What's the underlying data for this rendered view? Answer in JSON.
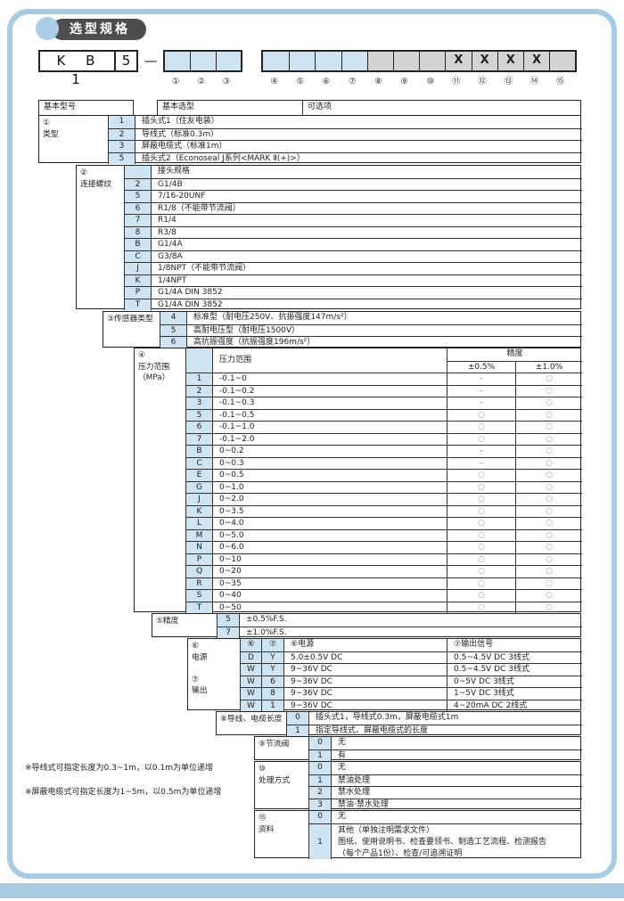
{
  "page": {
    "title": "选型规格"
  },
  "colors": {
    "frame": "#a6cbe3",
    "cell_blue": "#cfe4f2",
    "cell_gray": "#d4d4d4",
    "badge_dark": "#4d4d4d"
  },
  "model_code": {
    "prefix_cells": [
      "K B 1",
      "5"
    ],
    "separator": "—",
    "group1": {
      "cells": [
        {
          "label": "①",
          "text": ""
        },
        {
          "label": "②",
          "text": ""
        },
        {
          "label": "③",
          "text": ""
        }
      ]
    },
    "group2": {
      "cells": [
        {
          "label": "④",
          "text": "",
          "fill": "blue"
        },
        {
          "label": "⑤",
          "text": "",
          "fill": "blue"
        },
        {
          "label": "⑥",
          "text": "",
          "fill": "blue"
        },
        {
          "label": "⑦",
          "text": "",
          "fill": "blue"
        },
        {
          "label": "⑧",
          "text": "",
          "fill": "gray"
        },
        {
          "label": "⑨",
          "text": "",
          "fill": "gray"
        },
        {
          "label": "⑩",
          "text": "",
          "fill": "gray"
        },
        {
          "label": "⑪",
          "text": "X",
          "fill": "gray"
        },
        {
          "label": "⑫",
          "text": "X",
          "fill": "gray"
        },
        {
          "label": "⑬",
          "text": "X",
          "fill": "gray"
        },
        {
          "label": "⑭",
          "text": "X",
          "fill": "gray"
        },
        {
          "label": "⑮",
          "text": "",
          "fill": "gray"
        }
      ]
    }
  },
  "table": {
    "header": {
      "col1": "基本型号",
      "col2": "基本选型",
      "col3": "可选项"
    },
    "sections": [
      {
        "id": "type",
        "label": "①\n类型",
        "rows": [
          {
            "code": "1",
            "desc": "插头式1（住友电装）"
          },
          {
            "code": "2",
            "desc": "导线式（标准0.3m）"
          },
          {
            "code": "3",
            "desc": "屏蔽电缆式（标准1m）"
          },
          {
            "code": "5",
            "desc": "插头式2（Econoseal J系列<MARK Ⅱ(+)>）"
          }
        ]
      },
      {
        "id": "thread",
        "label": "②\n连接螺纹",
        "rows": [
          {
            "code": "",
            "desc": "接头规格"
          },
          {
            "code": "2",
            "desc": "G1/4B"
          },
          {
            "code": "5",
            "desc": "7/16-20UNF"
          },
          {
            "code": "6",
            "desc": "R1/8（不能带节流阀）"
          },
          {
            "code": "7",
            "desc": "R1/4"
          },
          {
            "code": "8",
            "desc": "R3/8"
          },
          {
            "code": "B",
            "desc": "G1/4A"
          },
          {
            "code": "C",
            "desc": "G3/8A"
          },
          {
            "code": "J",
            "desc": "1/8NPT（不能带节流阀）"
          },
          {
            "code": "K",
            "desc": "1/4NPT"
          },
          {
            "code": "P",
            "desc": "G1/4A DIN 3852"
          },
          {
            "code": "T",
            "desc": "G1/4A DIN 3852"
          }
        ]
      },
      {
        "id": "sensor-type",
        "label": "③传感器类型",
        "rows": [
          {
            "code": "4",
            "desc": "标准型（耐电压250V、抗振强度147m/s²）"
          },
          {
            "code": "5",
            "desc": "高耐电压型（耐电压1500V）"
          },
          {
            "code": "6",
            "desc": "高抗振强度（抗振强度196m/s²）"
          }
        ]
      },
      {
        "id": "pressure-range",
        "label": "④\n压力范围\n（MPa）",
        "header": {
          "range_label": "压力范围",
          "accuracy_label": "精度",
          "col05": "±0.5%",
          "col10": "±1.0%"
        },
        "rows": [
          {
            "code": "1",
            "desc": "-0.1~0",
            "a05": "–",
            "a10": "○"
          },
          {
            "code": "2",
            "desc": "-0.1~0.2",
            "a05": "–",
            "a10": "○"
          },
          {
            "code": "3",
            "desc": "-0.1~0.3",
            "a05": "–",
            "a10": "○"
          },
          {
            "code": "5",
            "desc": "-0.1~0.5",
            "a05": "○",
            "a10": "○"
          },
          {
            "code": "6",
            "desc": "-0.1~1.0",
            "a05": "○",
            "a10": "○"
          },
          {
            "code": "7",
            "desc": "-0.1~2.0",
            "a05": "○",
            "a10": "○"
          },
          {
            "code": "B",
            "desc": "0~0.2",
            "a05": "–",
            "a10": "○"
          },
          {
            "code": "C",
            "desc": "0~0.3",
            "a05": "–",
            "a10": "○"
          },
          {
            "code": "E",
            "desc": "0~0.5",
            "a05": "○",
            "a10": "○"
          },
          {
            "code": "G",
            "desc": "0~1.0",
            "a05": "○",
            "a10": "○"
          },
          {
            "code": "J",
            "desc": "0~2.0",
            "a05": "○",
            "a10": "○"
          },
          {
            "code": "K",
            "desc": "0~3.5",
            "a05": "○",
            "a10": "○"
          },
          {
            "code": "L",
            "desc": "0~4.0",
            "a05": "○",
            "a10": "○"
          },
          {
            "code": "M",
            "desc": "0~5.0",
            "a05": "○",
            "a10": "○"
          },
          {
            "code": "N",
            "desc": "0~6.0",
            "a05": "○",
            "a10": "○"
          },
          {
            "code": "P",
            "desc": "0~10",
            "a05": "○",
            "a10": "○"
          },
          {
            "code": "Q",
            "desc": "0~20",
            "a05": "○",
            "a10": "○"
          },
          {
            "code": "R",
            "desc": "0~35",
            "a05": "○",
            "a10": "○"
          },
          {
            "code": "S",
            "desc": "0~40",
            "a05": "○",
            "a10": "○"
          },
          {
            "code": "T",
            "desc": "0~50",
            "a05": "○",
            "a10": "○"
          }
        ]
      },
      {
        "id": "accuracy",
        "label": "⑤精度",
        "rows": [
          {
            "code": "5",
            "desc": "±0.5%F.S."
          },
          {
            "code": "7",
            "desc": "±1.0%F.S."
          }
        ]
      },
      {
        "id": "power-output",
        "label": "⑥\n电源\n\n⑦\n输出",
        "rows": [
          {
            "code": "⑥",
            "code2": "⑦",
            "desc": "⑥电源",
            "desc2": "⑦输出信号"
          },
          {
            "code": "D",
            "code2": "Y",
            "desc": "5.0±0.5V DC",
            "desc2": "0.5~4.5V DC 3线式"
          },
          {
            "code": "W",
            "code2": "Y",
            "desc": "9~36V DC",
            "desc2": "0.5~4.5V DC 3线式"
          },
          {
            "code": "W",
            "code2": "6",
            "desc": "9~36V DC",
            "desc2": "0~5V DC 3线式"
          },
          {
            "code": "W",
            "code2": "8",
            "desc": "9~36V DC",
            "desc2": "1~5V DC 3线式"
          },
          {
            "code": "W",
            "code2": "1",
            "desc": "9~36V DC",
            "desc2": "4~20mA DC 2线式"
          }
        ]
      },
      {
        "id": "cable-length",
        "label": "⑧导线、电缆长度",
        "rows": [
          {
            "code": "0",
            "desc": "插头式1，导线式0.3m，屏蔽电缆式1m"
          },
          {
            "code": "1",
            "desc": "指定导线式、屏蔽电缆式的长度"
          }
        ]
      },
      {
        "id": "throttle-valve",
        "label": "⑨节流阀",
        "rows": [
          {
            "code": "0",
            "desc": "无"
          },
          {
            "code": "1",
            "desc": "有"
          }
        ]
      },
      {
        "id": "treatment",
        "label": "⑩\n处理方式",
        "rows": [
          {
            "code": "0",
            "desc": "无"
          },
          {
            "code": "1",
            "desc": "禁油处理"
          },
          {
            "code": "2",
            "desc": "禁水处理"
          },
          {
            "code": "3",
            "desc": "禁油·禁水处理"
          }
        ]
      },
      {
        "id": "documents",
        "label": "⑮\n资料",
        "rows": [
          {
            "code": "0",
            "desc": "无"
          },
          {
            "code": "1",
            "desc": "其他（单独注明需求文件）\n图纸、使用说明书、检查要领书、制造工艺流程、检测报告\n（每个产品1份）、检查/可追溯证明",
            "lines": 3
          }
        ]
      }
    ]
  },
  "footnotes": [
    "※导线式可指定长度为0.3~1m，以0.1m为单位递增",
    "※屏蔽电缆式可指定长度为1~5m，以0.5m为单位递增"
  ]
}
